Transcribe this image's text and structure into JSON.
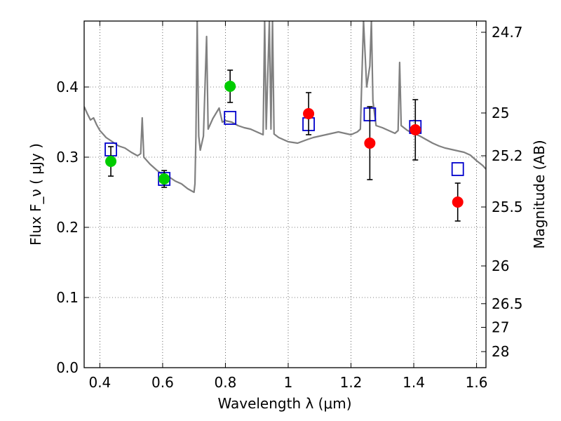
{
  "chart_data": {
    "type": "scatter",
    "xlabel": "Wavelength  λ (μm)",
    "ylabel": "Flux  F_ν  ( μJy )",
    "y2label": "Magnitude (AB)",
    "xlim": [
      0.35,
      1.63
    ],
    "ylim": [
      0.0,
      0.494
    ],
    "grid": true,
    "x_ticks": [
      0.4,
      0.6,
      0.8,
      1.0,
      1.2,
      1.4,
      1.6
    ],
    "x_tick_labels": [
      "0.4",
      "0.6",
      "0.8",
      "1",
      "1.2",
      "1.4",
      "1.6"
    ],
    "y_ticks": [
      0.0,
      0.1,
      0.2,
      0.3,
      0.4
    ],
    "y_tick_labels": [
      "0.0",
      "0.1",
      "0.2",
      "0.3",
      "0.4"
    ],
    "y2_ticks": [
      {
        "label": "24.7",
        "flux": 0.478
      },
      {
        "label": "25",
        "flux": 0.363
      },
      {
        "label": "25.2",
        "flux": 0.302
      },
      {
        "label": "25.5",
        "flux": 0.229
      },
      {
        "label": "26",
        "flux": 0.145
      },
      {
        "label": "26.5",
        "flux": 0.0912
      },
      {
        "label": "27",
        "flux": 0.0575
      },
      {
        "label": "28",
        "flux": 0.0229
      }
    ],
    "series": [
      {
        "kind": "line",
        "color": "#808080",
        "points": [
          [
            0.35,
            0.372
          ],
          [
            0.36,
            0.362
          ],
          [
            0.37,
            0.353
          ],
          [
            0.38,
            0.356
          ],
          [
            0.39,
            0.346
          ],
          [
            0.4,
            0.338
          ],
          [
            0.41,
            0.333
          ],
          [
            0.42,
            0.328
          ],
          [
            0.44,
            0.322
          ],
          [
            0.46,
            0.316
          ],
          [
            0.48,
            0.313
          ],
          [
            0.5,
            0.307
          ],
          [
            0.52,
            0.302
          ],
          [
            0.53,
            0.305
          ],
          [
            0.535,
            0.356
          ],
          [
            0.54,
            0.3
          ],
          [
            0.56,
            0.29
          ],
          [
            0.58,
            0.282
          ],
          [
            0.6,
            0.275
          ],
          [
            0.62,
            0.272
          ],
          [
            0.64,
            0.266
          ],
          [
            0.66,
            0.262
          ],
          [
            0.68,
            0.255
          ],
          [
            0.7,
            0.25
          ],
          [
            0.703,
            0.262
          ],
          [
            0.706,
            0.33
          ],
          [
            0.71,
            0.494
          ],
          [
            0.715,
            0.33
          ],
          [
            0.72,
            0.31
          ],
          [
            0.73,
            0.33
          ],
          [
            0.74,
            0.472
          ],
          [
            0.745,
            0.34
          ],
          [
            0.76,
            0.355
          ],
          [
            0.78,
            0.37
          ],
          [
            0.79,
            0.35
          ],
          [
            0.8,
            0.352
          ],
          [
            0.82,
            0.35
          ],
          [
            0.84,
            0.345
          ],
          [
            0.86,
            0.342
          ],
          [
            0.88,
            0.34
          ],
          [
            0.9,
            0.336
          ],
          [
            0.92,
            0.332
          ],
          [
            0.925,
            0.494
          ],
          [
            0.93,
            0.34
          ],
          [
            0.94,
            0.494
          ],
          [
            0.945,
            0.34
          ],
          [
            0.95,
            0.494
          ],
          [
            0.955,
            0.333
          ],
          [
            0.97,
            0.328
          ],
          [
            1.0,
            0.322
          ],
          [
            1.03,
            0.32
          ],
          [
            1.06,
            0.325
          ],
          [
            1.08,
            0.328
          ],
          [
            1.1,
            0.33
          ],
          [
            1.12,
            0.332
          ],
          [
            1.14,
            0.334
          ],
          [
            1.16,
            0.336
          ],
          [
            1.18,
            0.334
          ],
          [
            1.2,
            0.332
          ],
          [
            1.22,
            0.336
          ],
          [
            1.23,
            0.34
          ],
          [
            1.24,
            0.494
          ],
          [
            1.25,
            0.4
          ],
          [
            1.26,
            0.43
          ],
          [
            1.265,
            0.494
          ],
          [
            1.27,
            0.38
          ],
          [
            1.28,
            0.345
          ],
          [
            1.3,
            0.342
          ],
          [
            1.32,
            0.338
          ],
          [
            1.34,
            0.334
          ],
          [
            1.35,
            0.338
          ],
          [
            1.355,
            0.435
          ],
          [
            1.36,
            0.345
          ],
          [
            1.38,
            0.338
          ],
          [
            1.4,
            0.334
          ],
          [
            1.42,
            0.33
          ],
          [
            1.44,
            0.325
          ],
          [
            1.46,
            0.32
          ],
          [
            1.48,
            0.316
          ],
          [
            1.5,
            0.313
          ],
          [
            1.52,
            0.311
          ],
          [
            1.54,
            0.309
          ],
          [
            1.56,
            0.307
          ],
          [
            1.58,
            0.303
          ],
          [
            1.6,
            0.295
          ],
          [
            1.62,
            0.288
          ],
          [
            1.63,
            0.283
          ]
        ]
      },
      {
        "kind": "open-square",
        "color": "#0000cc",
        "points": [
          [
            0.435,
            0.311
          ],
          [
            0.605,
            0.269
          ],
          [
            0.815,
            0.356
          ],
          [
            1.065,
            0.347
          ],
          [
            1.26,
            0.361
          ],
          [
            1.405,
            0.343
          ],
          [
            1.54,
            0.283
          ]
        ]
      },
      {
        "kind": "filled-circle",
        "color": "#00cc00",
        "points": [
          {
            "x": 0.435,
            "y": 0.294,
            "yerr": 0.021
          },
          {
            "x": 0.605,
            "y": 0.269,
            "yerr": 0.012
          },
          {
            "x": 0.815,
            "y": 0.401,
            "yerr": 0.023
          }
        ]
      },
      {
        "kind": "filled-circle",
        "color": "#ff0000",
        "points": [
          {
            "x": 1.065,
            "y": 0.362,
            "yerr": 0.03
          },
          {
            "x": 1.26,
            "y": 0.32,
            "yerr": 0.052
          },
          {
            "x": 1.405,
            "y": 0.339,
            "yerr": 0.043
          },
          {
            "x": 1.54,
            "y": 0.236,
            "yerr": 0.027
          }
        ]
      }
    ]
  }
}
